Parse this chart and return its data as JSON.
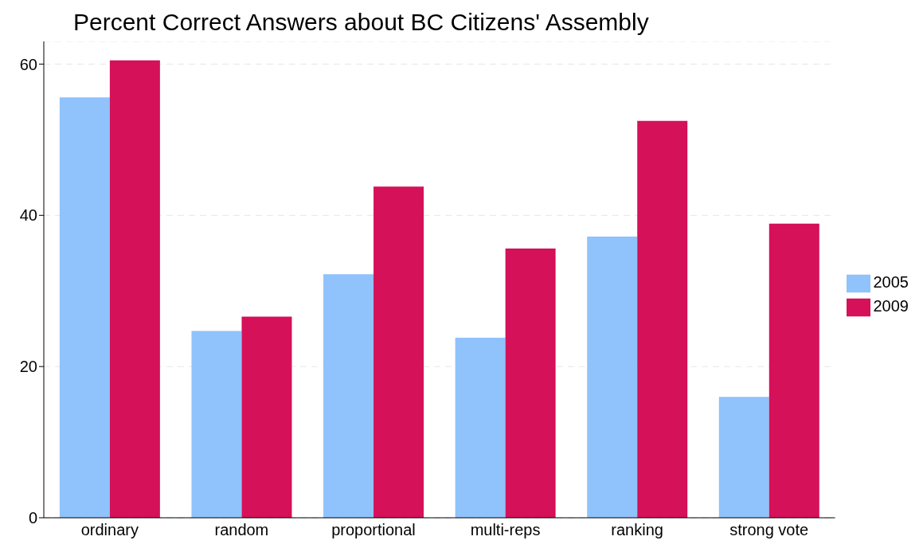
{
  "chart_data": {
    "type": "bar",
    "title": "Percent Correct Answers about BC Citizens' Assembly",
    "categories": [
      "ordinary",
      "random",
      "proportional",
      "multi-reps",
      "ranking",
      "strong vote"
    ],
    "series": [
      {
        "name": "2005",
        "color": "#90c2fc",
        "values": [
          55.6,
          24.7,
          32.2,
          23.8,
          37.2,
          16.0
        ]
      },
      {
        "name": "2009",
        "color": "#d41159",
        "values": [
          60.5,
          26.6,
          43.8,
          35.6,
          52.5,
          38.9
        ]
      }
    ],
    "ylim": [
      0,
      63
    ],
    "yticks": [
      0,
      20,
      40,
      60
    ],
    "grid": "y",
    "legend": "right"
  }
}
